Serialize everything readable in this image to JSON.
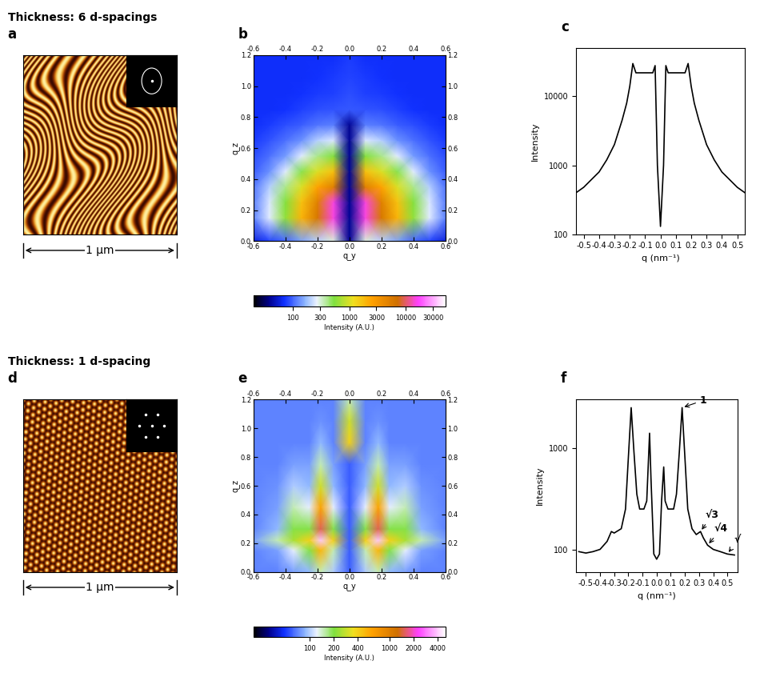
{
  "headings": [
    "Thickness: 6 d-spacings",
    "Thickness: 1 d-spacing"
  ],
  "chart_data": [
    {
      "type": "image",
      "title": "a",
      "annotations": [
        "1 μm"
      ]
    },
    {
      "type": "heatmap",
      "title": "b",
      "xlabel": "q_y",
      "ylabel": "q_z",
      "xlim": [
        -0.6,
        0.6
      ],
      "ylim": [
        0.0,
        1.2
      ],
      "xticks": [
        -0.6,
        -0.4,
        -0.2,
        0.0,
        0.2,
        0.4,
        0.6
      ],
      "yticks": [
        0.0,
        0.2,
        0.4,
        0.6,
        0.8,
        1.0,
        1.2
      ],
      "x": [
        -0.6,
        -0.5,
        -0.4,
        -0.3,
        -0.2,
        -0.1,
        0.0,
        0.1,
        0.2,
        0.3,
        0.4,
        0.5,
        0.6
      ],
      "y": [
        0.0,
        0.15,
        0.25,
        0.35,
        0.45,
        0.55,
        0.65,
        0.75,
        0.85,
        0.95,
        1.05,
        1.2
      ],
      "cells": [
        [
          60,
          80,
          100,
          150,
          200,
          300,
          40,
          300,
          200,
          150,
          100,
          80,
          60
        ],
        [
          120,
          250,
          600,
          2000,
          6000,
          15000,
          40,
          15000,
          6000,
          2000,
          600,
          250,
          120
        ],
        [
          115,
          240,
          550,
          1700,
          5000,
          15000,
          40,
          15000,
          5000,
          1700,
          550,
          240,
          115
        ],
        [
          110,
          200,
          400,
          1000,
          2500,
          5000,
          40,
          5000,
          2500,
          1000,
          400,
          200,
          110
        ],
        [
          95,
          130,
          250,
          500,
          1000,
          1700,
          40,
          1700,
          1000,
          500,
          250,
          130,
          95
        ],
        [
          85,
          105,
          140,
          250,
          400,
          550,
          40,
          550,
          400,
          250,
          140,
          105,
          85
        ],
        [
          75,
          88,
          105,
          130,
          200,
          240,
          40,
          240,
          200,
          130,
          105,
          88,
          75
        ],
        [
          70,
          75,
          85,
          95,
          110,
          115,
          40,
          115,
          110,
          95,
          85,
          75,
          70
        ],
        [
          70,
          70,
          72,
          78,
          85,
          88,
          90,
          88,
          85,
          78,
          72,
          70,
          70
        ],
        [
          70,
          70,
          70,
          72,
          75,
          78,
          85,
          78,
          75,
          72,
          70,
          70,
          70
        ],
        [
          70,
          70,
          70,
          70,
          72,
          75,
          80,
          75,
          72,
          70,
          70,
          70,
          70
        ],
        [
          70,
          70,
          70,
          70,
          70,
          70,
          75,
          70,
          70,
          70,
          70,
          70,
          70
        ]
      ],
      "colorbar": {
        "label": "Intensity (A.U.)",
        "range": [
          20,
          50000
        ],
        "ticks": [
          100,
          300,
          1000,
          3000,
          10000,
          30000
        ]
      }
    },
    {
      "type": "line",
      "title": "c",
      "xlabel": "q (nm⁻¹)",
      "ylabel": "Intensity",
      "log": "y",
      "color": "#000000",
      "xlim": [
        -0.55,
        0.55
      ],
      "ylim": [
        100,
        50000
      ],
      "xticks": [
        -0.5,
        -0.4,
        -0.3,
        -0.2,
        -0.1,
        0.0,
        0.1,
        0.2,
        0.3,
        0.4,
        0.5
      ],
      "yticks": [
        100,
        1000,
        10000
      ],
      "x": [
        -0.55,
        -0.5,
        -0.45,
        -0.4,
        -0.35,
        -0.3,
        -0.25,
        -0.22,
        -0.2,
        -0.18,
        -0.16,
        -0.1,
        -0.05,
        -0.035,
        -0.02,
        0.0,
        0.02,
        0.035,
        0.05,
        0.1,
        0.16,
        0.18,
        0.2,
        0.22,
        0.25,
        0.3,
        0.35,
        0.4,
        0.45,
        0.5,
        0.55
      ],
      "values": [
        400,
        480,
        620,
        800,
        1200,
        2000,
        4500,
        8000,
        14000,
        30000,
        22000,
        22000,
        22000,
        28000,
        1000,
        130,
        1000,
        28000,
        22000,
        22000,
        22000,
        30000,
        14000,
        8000,
        4500,
        2000,
        1200,
        800,
        620,
        480,
        400
      ]
    },
    {
      "type": "image",
      "title": "d",
      "annotations": [
        "1 μm"
      ]
    },
    {
      "type": "heatmap",
      "title": "e",
      "xlabel": "q_y",
      "ylabel": "q_z",
      "xlim": [
        -0.6,
        0.6
      ],
      "ylim": [
        0.0,
        1.2
      ],
      "xticks": [
        -0.6,
        -0.4,
        -0.2,
        0.0,
        0.2,
        0.4,
        0.6
      ],
      "yticks": [
        0.0,
        0.2,
        0.4,
        0.6,
        0.8,
        1.0,
        1.2
      ],
      "x": [
        -0.6,
        -0.45,
        -0.35,
        -0.25,
        -0.18,
        -0.1,
        0.0,
        0.1,
        0.18,
        0.25,
        0.35,
        0.45,
        0.6
      ],
      "y": [
        0.0,
        0.15,
        0.22,
        0.3,
        0.45,
        0.6,
        0.75,
        0.9,
        1.05,
        1.2
      ],
      "cells": [
        [
          70,
          70,
          80,
          90,
          150,
          100,
          60,
          100,
          150,
          90,
          80,
          70,
          70
        ],
        [
          70,
          80,
          120,
          200,
          500,
          150,
          60,
          150,
          500,
          200,
          120,
          80,
          70
        ],
        [
          80,
          150,
          250,
          400,
          4000,
          400,
          60,
          400,
          4000,
          400,
          250,
          150,
          80
        ],
        [
          70,
          90,
          200,
          200,
          1500,
          200,
          60,
          200,
          1500,
          200,
          200,
          90,
          70
        ],
        [
          70,
          80,
          150,
          120,
          600,
          120,
          60,
          120,
          600,
          120,
          150,
          80,
          70
        ],
        [
          70,
          75,
          100,
          90,
          300,
          90,
          60,
          90,
          300,
          90,
          100,
          75,
          70
        ],
        [
          70,
          70,
          80,
          80,
          150,
          80,
          60,
          80,
          150,
          80,
          80,
          70,
          70
        ],
        [
          70,
          70,
          70,
          70,
          90,
          70,
          400,
          70,
          90,
          70,
          70,
          70,
          70
        ],
        [
          70,
          70,
          70,
          70,
          75,
          70,
          300,
          70,
          75,
          70,
          70,
          70,
          70
        ],
        [
          70,
          70,
          70,
          70,
          70,
          70,
          150,
          70,
          70,
          70,
          70,
          70,
          70
        ]
      ],
      "colorbar": {
        "label": "Intensity (A.U.)",
        "range": [
          20,
          5000
        ],
        "ticks": [
          100,
          200,
          400,
          1000,
          2000,
          4000
        ]
      }
    },
    {
      "type": "line",
      "title": "f",
      "xlabel": "q (nm⁻¹)",
      "ylabel": "Intensity",
      "log": "y",
      "color": "#000000",
      "xlim": [
        -0.57,
        0.57
      ],
      "ylim": [
        60,
        3000
      ],
      "xticks": [
        -0.5,
        -0.4,
        -0.3,
        -0.2,
        -0.1,
        0.0,
        0.1,
        0.2,
        0.3,
        0.4,
        0.5
      ],
      "yticks": [
        100,
        1000
      ],
      "x": [
        -0.55,
        -0.5,
        -0.45,
        -0.4,
        -0.35,
        -0.32,
        -0.3,
        -0.25,
        -0.22,
        -0.2,
        -0.18,
        -0.16,
        -0.14,
        -0.12,
        -0.09,
        -0.07,
        -0.05,
        -0.04,
        -0.02,
        0.0,
        0.02,
        0.035,
        0.05,
        0.06,
        0.08,
        0.12,
        0.14,
        0.16,
        0.18,
        0.2,
        0.22,
        0.25,
        0.28,
        0.31,
        0.33,
        0.36,
        0.4,
        0.45,
        0.5,
        0.55
      ],
      "values": [
        95,
        92,
        95,
        100,
        120,
        150,
        145,
        160,
        250,
        800,
        2500,
        900,
        350,
        250,
        250,
        300,
        1400,
        500,
        90,
        80,
        90,
        300,
        650,
        300,
        250,
        250,
        350,
        900,
        2500,
        800,
        250,
        160,
        140,
        150,
        130,
        110,
        100,
        95,
        90,
        88
      ],
      "annotations": [
        {
          "text": "1",
          "x": 0.18,
          "y": 2500
        },
        {
          "text": "√3",
          "x": 0.31,
          "y": 150
        },
        {
          "text": "√4",
          "x": 0.36,
          "y": 110
        },
        {
          "text": "√",
          "x": 0.5,
          "y": 90
        }
      ]
    }
  ]
}
